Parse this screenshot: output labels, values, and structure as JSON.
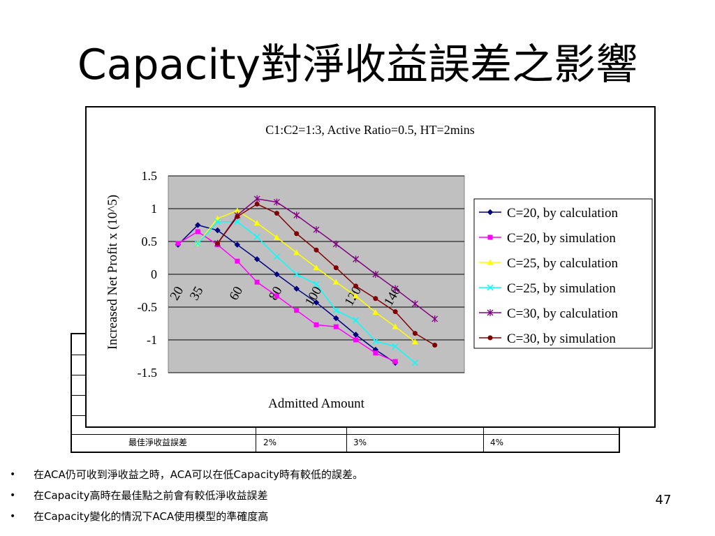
{
  "slide": {
    "title": "Capacity對淨收益誤差之影響",
    "page_number": "47",
    "bullets": [
      "在ACA仍可收到淨收益之時，ACA可以在低Capacity時有較低的誤差。",
      "在Capacity高時在最佳點之前會有較低淨收益誤差",
      "在Capacity變化的情況下ACA使用模型的準確度高"
    ],
    "bullet_symbol": "•"
  },
  "table": {
    "visible_row": {
      "label": "最佳淨收益誤差",
      "values": [
        "2%",
        "3%",
        "4%"
      ]
    }
  },
  "chart_data": {
    "type": "line",
    "title": "C1:C2=1:3, Active Ratio=0.5, HT=2mins",
    "xlabel": "Admitted Amount",
    "ylabel": "Increased Net Profit x (10^5)",
    "ylim": [
      -1.5,
      1.5
    ],
    "yticks": [
      "1.5",
      "1",
      "0.5",
      "0",
      "-0.5",
      "-1",
      "-1.5"
    ],
    "x_tick_labels": [
      "20",
      "35",
      "60",
      "80",
      "100",
      "120",
      "140"
    ],
    "x": [
      20,
      30,
      40,
      50,
      60,
      70,
      80,
      90,
      100,
      110,
      120,
      130,
      140,
      150,
      160
    ],
    "grid": true,
    "plot_background": "#c0c0c0",
    "legend_position": "right",
    "series": [
      {
        "name": "C=20, by calculation",
        "color": "#000080",
        "marker": "diamond",
        "values": [
          0.45,
          0.75,
          0.67,
          0.45,
          0.23,
          0.0,
          -0.22,
          -0.43,
          -0.67,
          -0.92,
          -1.15,
          -1.35,
          null,
          null,
          null
        ]
      },
      {
        "name": "C=20, by simulation",
        "color": "#ff00ff",
        "marker": "square",
        "values": [
          0.47,
          0.65,
          0.45,
          0.2,
          -0.12,
          -0.33,
          -0.55,
          -0.77,
          -0.8,
          -1.0,
          -1.2,
          -1.33,
          null,
          null,
          null
        ]
      },
      {
        "name": "C=25, by calculation",
        "color": "#ffff00",
        "marker": "triangle",
        "values": [
          null,
          0.47,
          0.85,
          0.97,
          0.78,
          0.56,
          0.33,
          0.1,
          -0.12,
          -0.33,
          -0.58,
          -0.8,
          -1.03,
          null,
          null
        ]
      },
      {
        "name": "C=25, by simulation",
        "color": "#00ffff",
        "marker": "x",
        "values": [
          null,
          0.47,
          0.8,
          0.8,
          0.57,
          0.27,
          0.0,
          -0.15,
          -0.55,
          -0.7,
          -1.02,
          -1.1,
          -1.35,
          null,
          null
        ]
      },
      {
        "name": "C=30, by calculation",
        "color": "#800080",
        "marker": "star",
        "values": [
          null,
          null,
          0.47,
          0.9,
          1.15,
          1.1,
          0.9,
          0.68,
          0.46,
          0.23,
          0.0,
          -0.22,
          -0.45,
          -0.68,
          null
        ]
      },
      {
        "name": "C=30, by simulation",
        "color": "#800000",
        "marker": "circle",
        "values": [
          null,
          null,
          0.47,
          0.88,
          1.07,
          0.93,
          0.62,
          0.37,
          0.1,
          -0.18,
          -0.37,
          -0.57,
          -0.9,
          -1.08,
          null
        ]
      }
    ]
  }
}
